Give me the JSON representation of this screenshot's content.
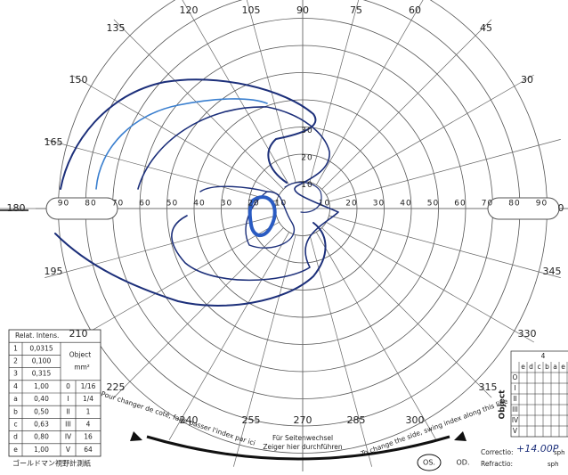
{
  "angle_labels": [
    "0",
    "30",
    "45",
    "60",
    "75",
    "90",
    "105",
    "120",
    "135",
    "150",
    "165",
    "180",
    "195",
    "210",
    "225",
    "240",
    "255",
    "270",
    "285",
    "300",
    "315",
    "330",
    "345"
  ],
  "eccentricity_labels": [
    "10",
    "20",
    "30",
    "40",
    "50",
    "60",
    "70",
    "80",
    "90"
  ],
  "intensity_table": {
    "header": [
      "Relat. Intens.",
      "Object"
    ],
    "unit": "mm²",
    "rows": [
      [
        "1",
        "0,0315",
        "",
        ""
      ],
      [
        "2",
        "0,100",
        "",
        ""
      ],
      [
        "3",
        "0,315",
        "",
        ""
      ],
      [
        "4",
        "1,00",
        "0",
        "1/16"
      ],
      [
        "a",
        "0,40",
        "I",
        "1/4"
      ],
      [
        "b",
        "0,50",
        "II",
        "1"
      ],
      [
        "c",
        "0,63",
        "III",
        "4"
      ],
      [
        "d",
        "0,80",
        "IV",
        "16"
      ],
      [
        "e",
        "1,00",
        "V",
        "64"
      ]
    ]
  },
  "footer_note": "ゴールドマン視野計測紙",
  "side_change": {
    "fr": "Pour changer de coté, faire passer l'index par ici",
    "de_1": "Für Seitenwechsel",
    "de_2": "Zeiger hier durchführen",
    "en": "To change the side, swing index along this line"
  },
  "eye": {
    "os": "OS.",
    "od": "OD."
  },
  "correction": {
    "label": "Correctio:",
    "value": "+14.00P",
    "unit": "sph"
  },
  "refraction": {
    "label": "Refractio:",
    "unit": "sph"
  },
  "object_grid": {
    "title": "Object",
    "intensity": "4",
    "columns": [
      "e",
      "d",
      "c",
      "b",
      "a",
      "e",
      "d"
    ],
    "rows": [
      "O",
      "I",
      "II",
      "III",
      "IV",
      "V"
    ]
  }
}
